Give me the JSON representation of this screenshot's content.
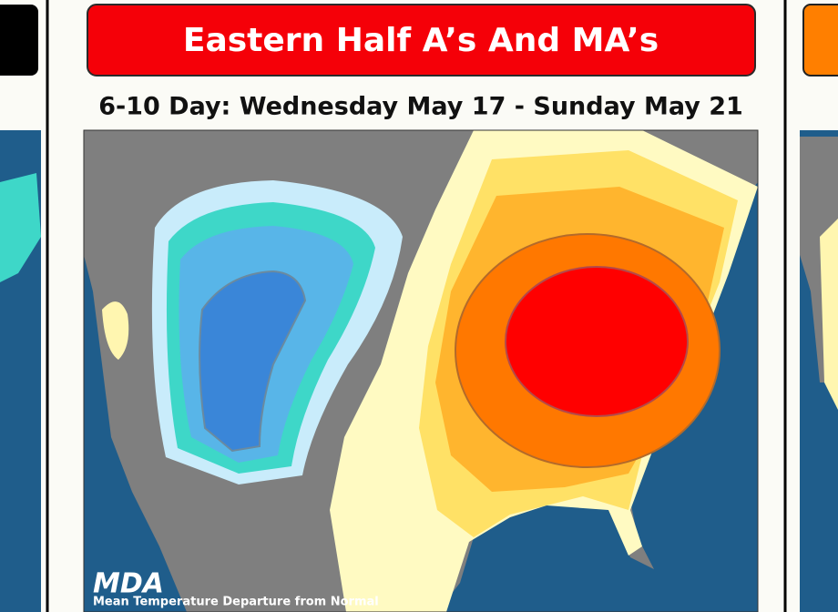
{
  "header": {
    "title": "Eastern Half A’s And MA’s",
    "subtitle": "6-10 Day: Wednesday May 17 - Sunday May 21"
  },
  "map": {
    "logo": "MDA",
    "caption": "Mean Temperature Departure from Normal"
  }
}
